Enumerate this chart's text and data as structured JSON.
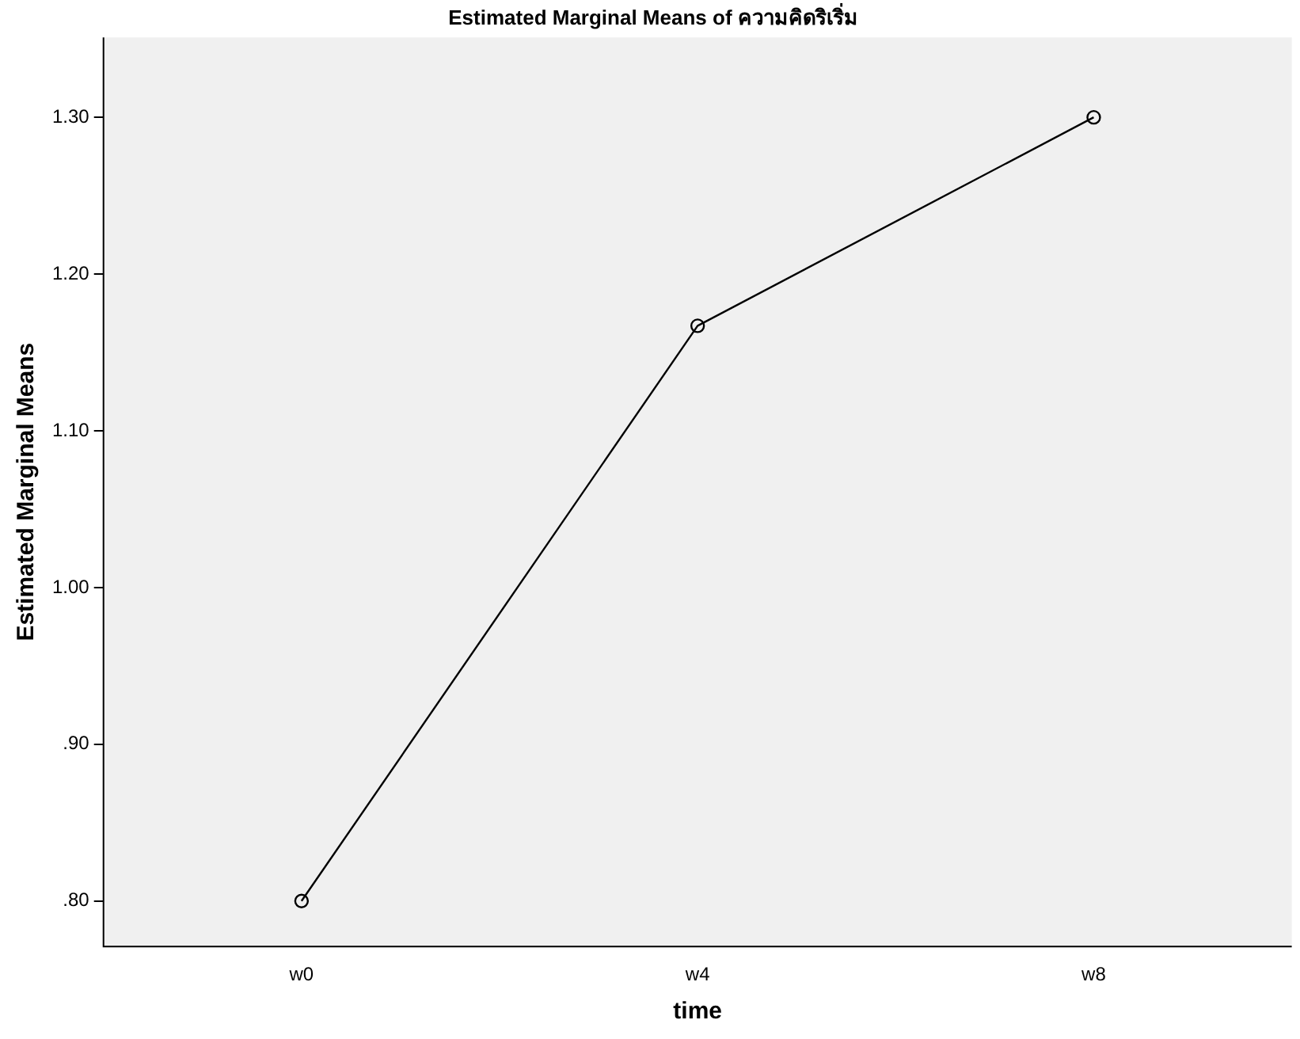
{
  "chart_data": {
    "type": "line",
    "title": "Estimated Marginal Means of ความคิดริเริ่ม",
    "xlabel": "time",
    "ylabel": "Estimated Marginal Means",
    "categories": [
      "w0",
      "w4",
      "w8"
    ],
    "series": [
      {
        "color": "#000000",
        "values": [
          0.8,
          1.167,
          1.3
        ]
      }
    ],
    "ylim": [
      0.771,
      1.351
    ],
    "yticks": [
      {
        "value": 0.8,
        "label": ".80"
      },
      {
        "value": 0.9,
        "label": ".90"
      },
      {
        "value": 1.0,
        "label": "1.00"
      },
      {
        "value": 1.1,
        "label": "1.10"
      },
      {
        "value": 1.2,
        "label": "1.20"
      },
      {
        "value": 1.3,
        "label": "1.30"
      }
    ],
    "grid": false,
    "legend": false,
    "marker": "circle",
    "line_style": "solid"
  }
}
